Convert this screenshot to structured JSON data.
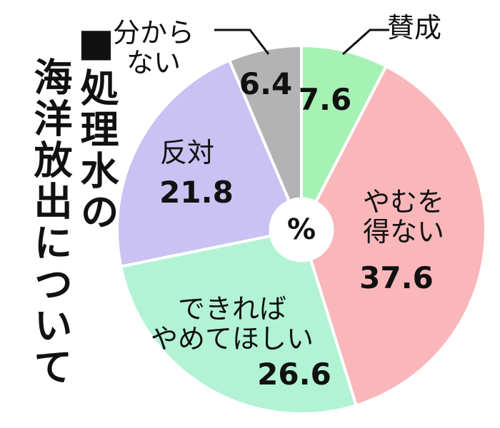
{
  "chart_data": {
    "type": "pie",
    "title": [
      "■処理水の",
      "海洋放出について"
    ],
    "center_label": "%",
    "categories": [
      "賛成",
      "やむを\n得ない",
      "できれば\nやめてほしい",
      "反対",
      "分から\nない"
    ],
    "values": [
      7.6,
      37.6,
      26.6,
      21.8,
      6.4
    ],
    "colors": [
      "#a6f2b4",
      "#f9b7ba",
      "#b2f3d6",
      "#c9c2f2",
      "#b3b3b3"
    ]
  }
}
